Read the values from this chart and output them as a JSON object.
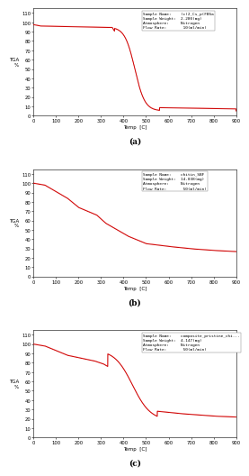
{
  "charts": [
    {
      "label": "(a)",
      "ylabel": "TGA\n%",
      "xlabel": "Temp  [C]",
      "xlim": [
        0,
        900
      ],
      "ylim": [
        0,
        115
      ],
      "yticks": [
        0,
        10,
        20,
        30,
        40,
        50,
        60,
        70,
        80,
        90,
        100,
        110
      ],
      "xticks": [
        0,
        100,
        200,
        300,
        400,
        500,
        600,
        700,
        800,
        900
      ],
      "annotation": "Sample Name:    (c)2_Cs_p(FBSa\nSample Weight:  2.280(mg)\nAtmosphere:     Nitrogen\nFlow Rate:       10(ml/min)",
      "curve_type": "sigmoid_drop"
    },
    {
      "label": "(b)",
      "ylabel": "TGA\n%",
      "xlabel": "Temp  [C]",
      "xlim": [
        0,
        900
      ],
      "ylim": [
        0,
        115
      ],
      "yticks": [
        0,
        10,
        20,
        30,
        40,
        50,
        60,
        70,
        80,
        90,
        100,
        110
      ],
      "xticks": [
        0,
        100,
        200,
        300,
        400,
        500,
        600,
        700,
        800,
        900
      ],
      "annotation": "Sample Name:    chitin_SBF\nSample Weight:  14.038(mg)\nAtmosphere:     Nitrogen\nFlow Rate:       50(ml/min)",
      "curve_type": "gradual_drop"
    },
    {
      "label": "(c)",
      "ylabel": "TGA\n%",
      "xlabel": "Temp  [C]",
      "xlim": [
        0,
        900
      ],
      "ylim": [
        0,
        115
      ],
      "yticks": [
        0,
        10,
        20,
        30,
        40,
        50,
        60,
        70,
        80,
        90,
        100,
        110
      ],
      "xticks": [
        0,
        100,
        200,
        300,
        400,
        500,
        600,
        700,
        800,
        900
      ],
      "annotation": "Sample Name:    composite_pristine_chi...\nSample Weight:  4.147(mg)\nAtmosphere:     Nitrogen\nFlow Rate:       50(ml/min)",
      "curve_type": "composite_drop"
    }
  ],
  "line_color": "#cc0000",
  "line_color2": "#ff9999",
  "bg_color": "#ffffff",
  "tick_labelsize": 3.8,
  "annotation_fontsize": 3.2,
  "label_fontsize": 4.0
}
